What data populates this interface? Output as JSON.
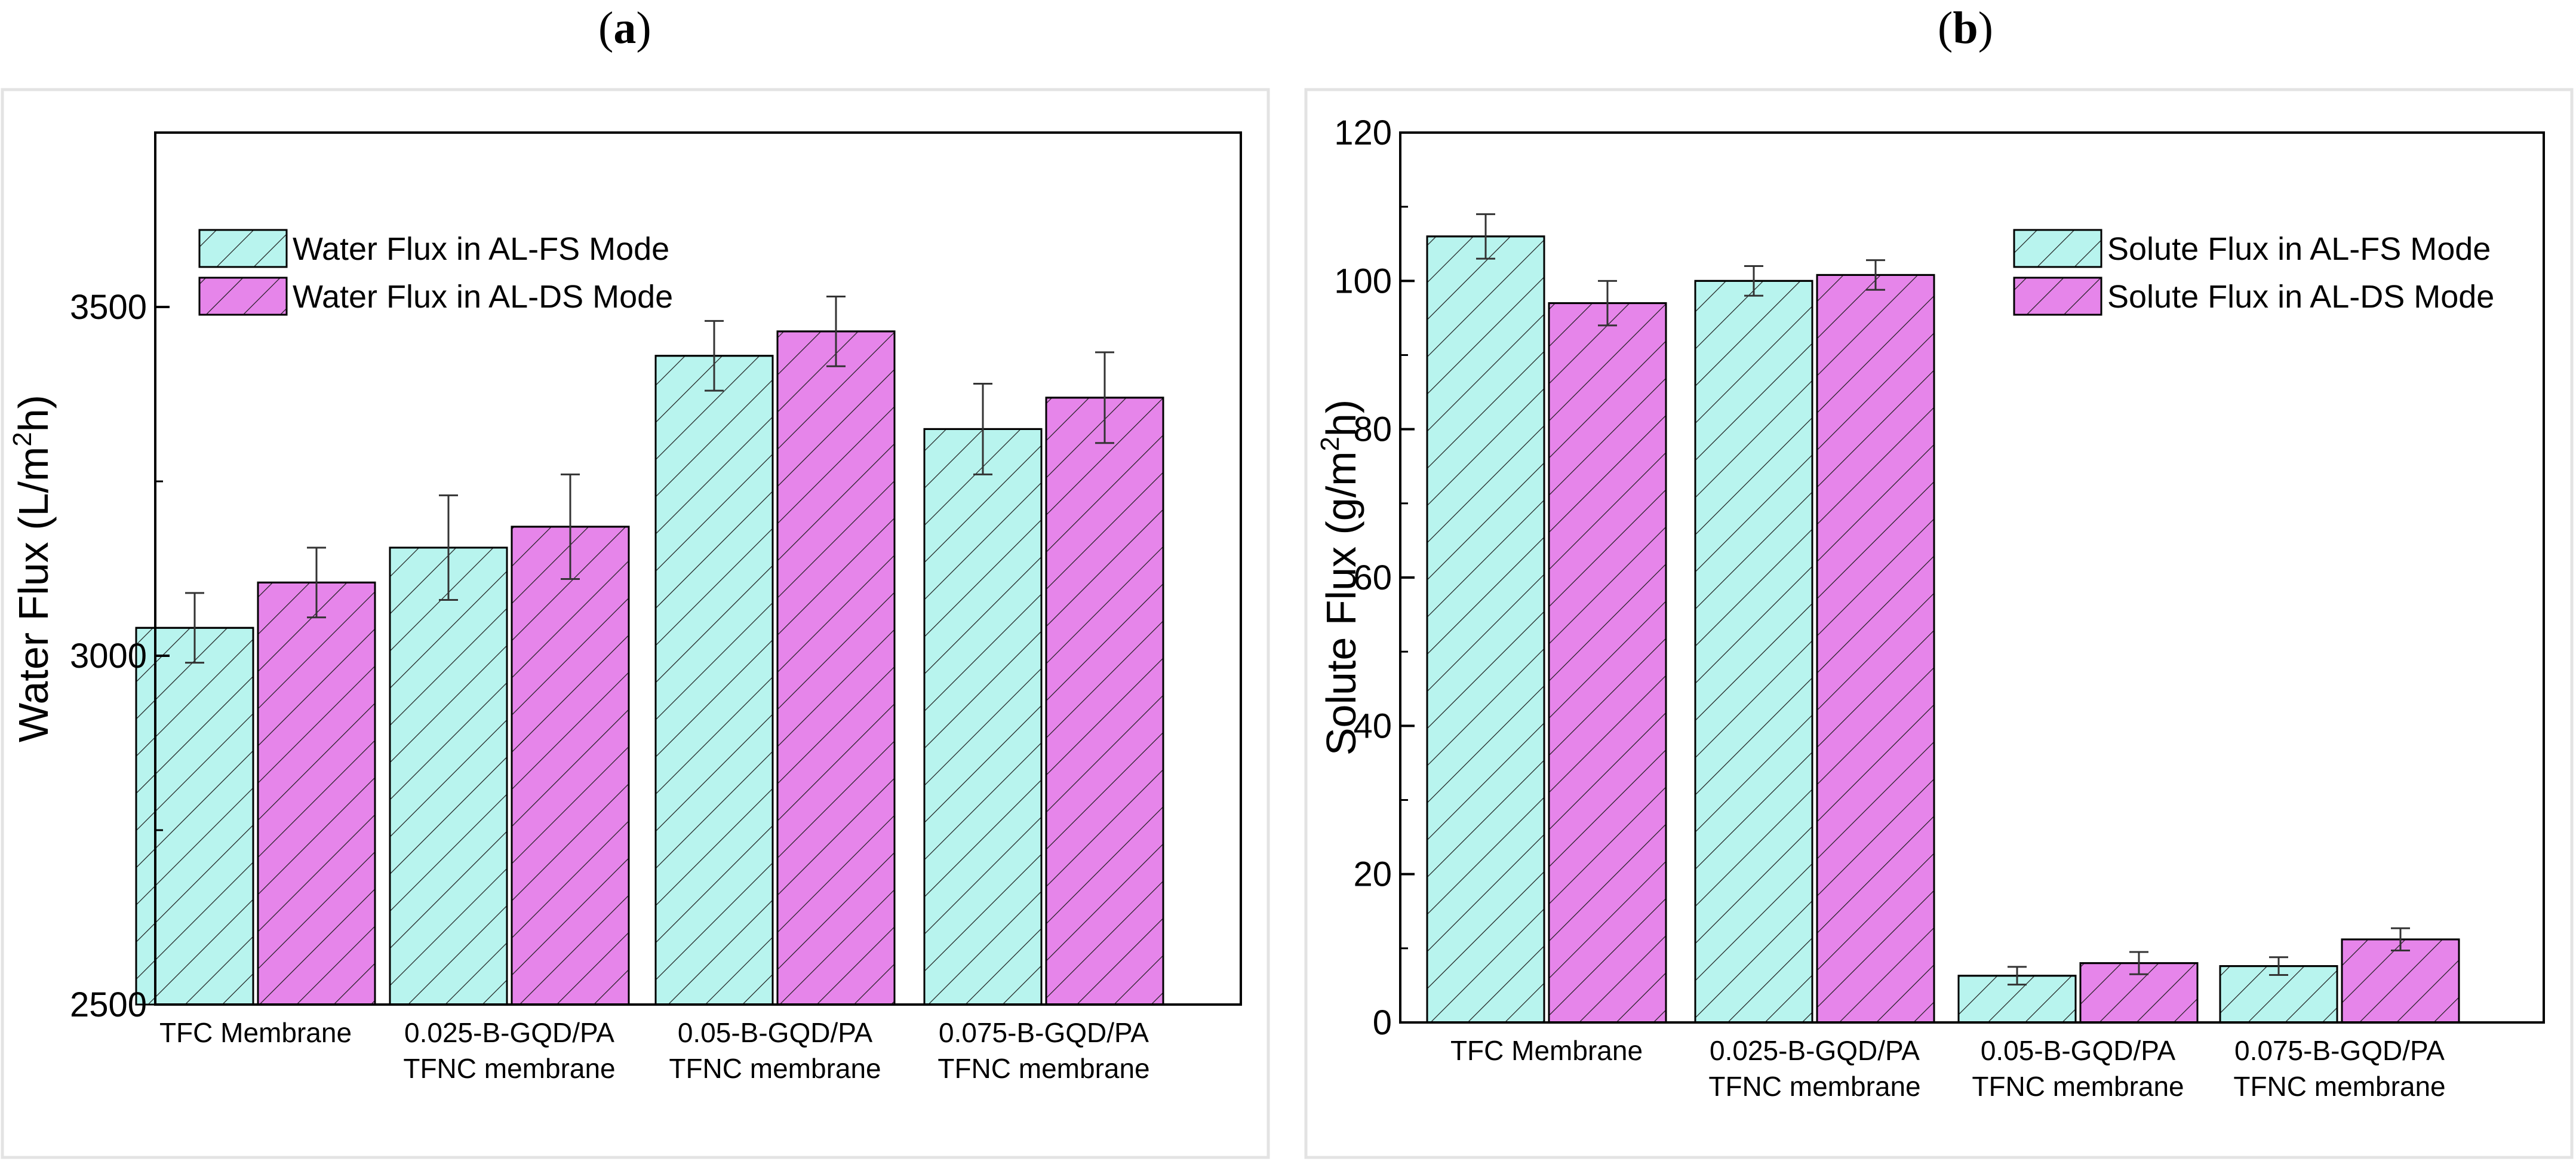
{
  "panels": {
    "a": {
      "open": "(",
      "letter": "a",
      "close": ")"
    },
    "b": {
      "open": "(",
      "letter": "b",
      "close": ")"
    }
  },
  "colors": {
    "fs_fill": "#b8f4ee",
    "ds_fill": "#e685ea",
    "hatch": "#1a1a1a",
    "axis": "#000000"
  },
  "chart_data": [
    {
      "type": "bar",
      "panel": "a",
      "ylabel": "Water Flux (L/m²h)",
      "ylabel_parts": {
        "main": "Water Flux (L/m",
        "sup": "2",
        "tail": "h)"
      },
      "ylim": [
        2500,
        3750
      ],
      "yticks": [
        2500,
        3000,
        3500
      ],
      "minor_ticks": [
        2750,
        3250
      ],
      "categories": [
        [
          "TFC Membrane"
        ],
        [
          "0.025-B-GQD/PA",
          "TFNC membrane"
        ],
        [
          "0.05-B-GQD/PA",
          "TFNC membrane"
        ],
        [
          "0.075-B-GQD/PA",
          "TFNC membrane"
        ]
      ],
      "series": [
        {
          "name": "Water Flux in AL-FS Mode",
          "values": [
            3040,
            3155,
            3430,
            3325
          ],
          "errors": [
            50,
            75,
            50,
            65
          ]
        },
        {
          "name": "Water Flux in AL-DS Mode",
          "values": [
            3105,
            3185,
            3465,
            3370
          ],
          "errors": [
            50,
            75,
            50,
            65
          ]
        }
      ],
      "legend_position": "top-left"
    },
    {
      "type": "bar",
      "panel": "b",
      "ylabel": "Solute Flux (g/m²h)",
      "ylabel_parts": {
        "main": "Solute Flux (g/m",
        "sup": "2",
        "tail": "h)"
      },
      "ylim": [
        0,
        120
      ],
      "yticks": [
        0,
        20,
        40,
        60,
        80,
        100,
        120
      ],
      "minor_ticks": [
        10,
        30,
        50,
        70,
        90,
        110
      ],
      "categories": [
        [
          "TFC Membrane"
        ],
        [
          "0.025-B-GQD/PA",
          "TFNC membrane"
        ],
        [
          "0.05-B-GQD/PA",
          "TFNC membrane"
        ],
        [
          "0.075-B-GQD/PA",
          "TFNC membrane"
        ]
      ],
      "series": [
        {
          "name": "Solute Flux in AL-FS Mode",
          "values": [
            106,
            100,
            6.3,
            7.6
          ],
          "errors": [
            3,
            2,
            1.2,
            1.2
          ]
        },
        {
          "name": "Solute Flux in AL-DS Mode",
          "values": [
            97,
            100.8,
            8.0,
            11.2
          ],
          "errors": [
            3,
            2,
            1.5,
            1.5
          ]
        }
      ],
      "legend_position": "top-right"
    }
  ]
}
